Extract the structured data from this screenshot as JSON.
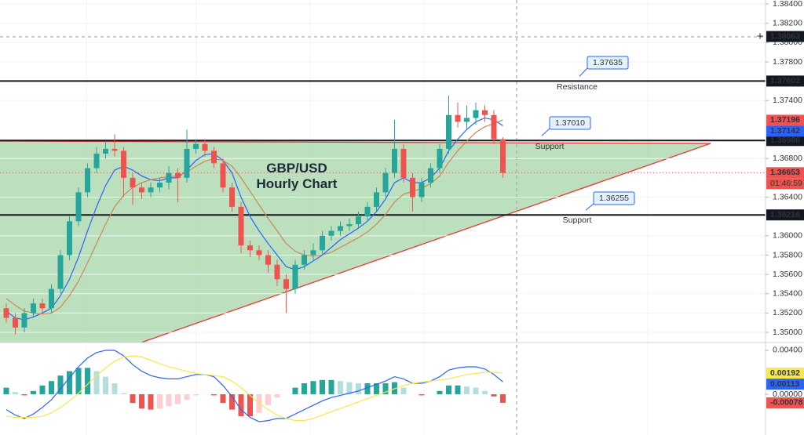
{
  "chart_data": [
    {
      "type": "candlestick",
      "title": "GBP/USD Hourly Chart",
      "open": [
        1.3525,
        1.3515,
        1.3505,
        1.352,
        1.353,
        1.3525,
        1.3545,
        1.358,
        1.3615,
        1.3645,
        1.367,
        1.3685,
        1.369,
        1.3688,
        1.366,
        1.365,
        1.3645,
        1.365,
        1.3655,
        1.3665,
        1.366,
        1.369,
        1.3695,
        1.3688,
        1.3675,
        1.365,
        1.363,
        1.359,
        1.3585,
        1.358,
        1.357,
        1.3555,
        1.3545,
        1.357,
        1.358,
        1.3585,
        1.36,
        1.3605,
        1.361,
        1.3612,
        1.362,
        1.363,
        1.3645,
        1.3665,
        1.369,
        1.366,
        1.364,
        1.3655,
        1.367,
        1.369,
        1.3725,
        1.3718,
        1.3722,
        1.373,
        1.3725,
        1.37
      ],
      "high": [
        1.353,
        1.352,
        1.3525,
        1.3535,
        1.3535,
        1.355,
        1.3585,
        1.362,
        1.365,
        1.3675,
        1.3692,
        1.3698,
        1.3705,
        1.3692,
        1.3665,
        1.3655,
        1.3655,
        1.366,
        1.3672,
        1.367,
        1.371,
        1.37,
        1.37,
        1.3692,
        1.368,
        1.3655,
        1.3635,
        1.3595,
        1.359,
        1.3585,
        1.3575,
        1.356,
        1.3575,
        1.3585,
        1.3592,
        1.3605,
        1.361,
        1.3615,
        1.3618,
        1.3625,
        1.3635,
        1.365,
        1.367,
        1.372,
        1.3695,
        1.3665,
        1.366,
        1.3675,
        1.3695,
        1.3745,
        1.3738,
        1.3735,
        1.3738,
        1.3735,
        1.373,
        1.3702
      ],
      "low": [
        1.351,
        1.3498,
        1.35,
        1.3515,
        1.352,
        1.352,
        1.354,
        1.3575,
        1.361,
        1.364,
        1.3665,
        1.368,
        1.3682,
        1.364,
        1.3632,
        1.3638,
        1.364,
        1.3645,
        1.3648,
        1.3635,
        1.3655,
        1.3685,
        1.3682,
        1.367,
        1.3645,
        1.3625,
        1.3582,
        1.3578,
        1.3575,
        1.3562,
        1.3548,
        1.352,
        1.354,
        1.3565,
        1.3575,
        1.358,
        1.3595,
        1.36,
        1.3605,
        1.3608,
        1.3615,
        1.3625,
        1.364,
        1.366,
        1.3655,
        1.3625,
        1.3635,
        1.365,
        1.3665,
        1.3685,
        1.3712,
        1.371,
        1.3715,
        1.3718,
        1.3695,
        1.366
      ],
      "close": [
        1.3515,
        1.3505,
        1.352,
        1.353,
        1.3525,
        1.3545,
        1.358,
        1.3615,
        1.3645,
        1.367,
        1.3685,
        1.369,
        1.3688,
        1.366,
        1.365,
        1.3645,
        1.365,
        1.3655,
        1.3665,
        1.366,
        1.369,
        1.3695,
        1.3688,
        1.3675,
        1.365,
        1.363,
        1.359,
        1.3585,
        1.358,
        1.357,
        1.3555,
        1.3545,
        1.357,
        1.358,
        1.3585,
        1.36,
        1.3605,
        1.361,
        1.3612,
        1.362,
        1.363,
        1.3645,
        1.3665,
        1.369,
        1.366,
        1.364,
        1.3655,
        1.367,
        1.369,
        1.3725,
        1.3718,
        1.3722,
        1.373,
        1.3725,
        1.37,
        1.3665
      ],
      "up_color": "#26a69a",
      "down_color": "#ef5350",
      "overlays": [
        {
          "color": "#2962ff",
          "values": [
            1.3522,
            1.3515,
            1.3513,
            1.3516,
            1.352,
            1.3525,
            1.3538,
            1.3555,
            1.3578,
            1.3605,
            1.363,
            1.3652,
            1.3668,
            1.3672,
            1.3668,
            1.3662,
            1.3658,
            1.3657,
            1.366,
            1.366,
            1.3668,
            1.3678,
            1.3684,
            1.3685,
            1.3678,
            1.3665,
            1.364,
            1.362,
            1.3605,
            1.3592,
            1.358,
            1.3568,
            1.3565,
            1.3568,
            1.3574,
            1.358,
            1.3588,
            1.3596,
            1.3602,
            1.3608,
            1.3615,
            1.3625,
            1.3638,
            1.3655,
            1.366,
            1.3655,
            1.3655,
            1.366,
            1.367,
            1.3688,
            1.37,
            1.371,
            1.3718,
            1.3722,
            1.372,
            1.3714
          ]
        },
        {
          "color": "#c8895a",
          "values": [
            1.3535,
            1.3528,
            1.3522,
            1.352,
            1.3519,
            1.352,
            1.3526,
            1.3538,
            1.3553,
            1.3572,
            1.3592,
            1.3612,
            1.363,
            1.3642,
            1.365,
            1.3655,
            1.3658,
            1.366,
            1.3661,
            1.3662,
            1.3666,
            1.3672,
            1.3677,
            1.368,
            1.3678,
            1.3672,
            1.366,
            1.3646,
            1.3632,
            1.3618,
            1.3605,
            1.3592,
            1.3584,
            1.358,
            1.3579,
            1.358,
            1.3583,
            1.3588,
            1.3593,
            1.3598,
            1.3604,
            1.3612,
            1.3622,
            1.3635,
            1.3643,
            1.3646,
            1.3649,
            1.3654,
            1.3662,
            1.3676,
            1.3688,
            1.3698,
            1.3707,
            1.3713,
            1.3716,
            1.372
          ]
        }
      ],
      "levels": [
        {
          "value": 1.37602,
          "note": "Resistance",
          "note_color": "#d32f2f",
          "callout": 1.37635
        },
        {
          "value": 1.36986,
          "note": "Support",
          "note_color": "#2e7d32",
          "callout": {
            "value": 1.3701,
            "label": "1.37010"
          }
        },
        {
          "value": 1.36216,
          "note": "Support",
          "note_color": "#2e7d32",
          "callout": 1.36255
        }
      ],
      "axis_labels": [
        {
          "value": 1.38063,
          "bg": "#131722"
        },
        {
          "value": 1.37196,
          "bg": "#ef5350"
        },
        {
          "value": 1.37142,
          "bg": "#2962ff"
        },
        {
          "value": 1.36653,
          "bg": "#ef5350",
          "countdown": "01:46:59"
        }
      ],
      "ylim": [
        1.34895,
        1.38441
      ],
      "yticks": [
        {
          "value": 1.384,
          "label": "1.38400"
        },
        {
          "value": 1.382,
          "label": "1.38200"
        },
        {
          "value": 1.38,
          "label": "1.38000"
        },
        {
          "value": 1.378,
          "label": "1.37800"
        },
        {
          "value": 1.374,
          "label": "1.37400"
        },
        {
          "value": 1.368,
          "label": "1.36800"
        },
        {
          "value": 1.364,
          "label": "1.36400"
        },
        {
          "value": 1.36,
          "label": "1.36000"
        },
        {
          "value": 1.358,
          "label": "1.35800"
        },
        {
          "value": 1.356,
          "label": "1.35600"
        },
        {
          "value": 1.354,
          "label": "1.35400"
        },
        {
          "value": 1.352,
          "label": "1.35200"
        },
        {
          "value": 1.35,
          "label": "1.35000"
        }
      ],
      "grid": true
    },
    {
      "type": "macd",
      "histogram": [
        0.0006,
        0.0002,
        -0.0001,
        0.0003,
        0.0008,
        0.0012,
        0.0017,
        0.0021,
        0.0024,
        0.0024,
        0.0021,
        0.0016,
        0.001,
        0.0001,
        -0.0008,
        -0.0013,
        -0.0014,
        -0.0013,
        -0.0011,
        -0.0009,
        -0.0005,
        -0.0001,
        0.0,
        -0.0001,
        -0.0008,
        -0.0014,
        -0.002,
        -0.002,
        -0.0017,
        -0.001,
        -0.0003,
        0.0,
        0.0006,
        0.001,
        0.0012,
        0.0013,
        0.0013,
        0.0012,
        0.0011,
        0.001,
        0.001,
        0.001,
        0.001,
        0.0011,
        0.0006,
        0.0,
        -0.0001,
        0.0,
        0.0003,
        0.0008,
        0.0008,
        0.0007,
        0.0006,
        0.0003,
        -0.0002,
        -0.00078
      ],
      "hist_colors": [
        "#26a69a",
        "#b2dfdb",
        "#ffcdd2",
        "#ef5350"
      ],
      "series": [
        {
          "color": "#2962ff",
          "values": [
            -0.0014,
            -0.0019,
            -0.0022,
            -0.0018,
            -0.0012,
            -0.0005,
            0.0005,
            0.0015,
            0.0025,
            0.0033,
            0.0038,
            0.004,
            0.004,
            0.0035,
            0.0027,
            0.0021,
            0.0017,
            0.0015,
            0.0014,
            0.0014,
            0.0016,
            0.0018,
            0.0018,
            0.0016,
            0.0008,
            -0.0002,
            -0.0014,
            -0.0021,
            -0.0025,
            -0.0024,
            -0.0022,
            -0.0022,
            -0.0018,
            -0.0014,
            -0.001,
            -0.0006,
            -0.0003,
            -0.0001,
            0.0001,
            0.0003,
            0.0006,
            0.0009,
            0.0012,
            0.0016,
            0.0014,
            0.001,
            0.001,
            0.0012,
            0.0016,
            0.0022,
            0.0024,
            0.0025,
            0.0025,
            0.0023,
            0.0018,
            0.00113
          ]
        },
        {
          "color": "#f5e94a",
          "values": [
            -0.002,
            -0.0021,
            -0.0021,
            -0.0021,
            -0.002,
            -0.0017,
            -0.0012,
            -0.0006,
            0.0001,
            0.0009,
            0.0017,
            0.0024,
            0.003,
            0.0034,
            0.0035,
            0.0034,
            0.0031,
            0.0028,
            0.0025,
            0.0023,
            0.0021,
            0.0019,
            0.0018,
            0.0017,
            0.0016,
            0.0012,
            0.0006,
            -0.0001,
            -0.0008,
            -0.0014,
            -0.0019,
            -0.0022,
            -0.0024,
            -0.0024,
            -0.0022,
            -0.0019,
            -0.0016,
            -0.0013,
            -0.001,
            -0.0007,
            -0.0004,
            -0.0001,
            0.0002,
            0.0005,
            0.0008,
            0.001,
            0.0011,
            0.0012,
            0.0013,
            0.0014,
            0.0016,
            0.0018,
            0.0019,
            0.002,
            0.002,
            0.00192
          ]
        }
      ],
      "axis_labels": [
        {
          "value": 0.00192,
          "bg": "#f5e94a",
          "fg": "#131722"
        },
        {
          "value": 0.00113,
          "bg": "#2962ff",
          "fg": "#ffffff"
        },
        {
          "value": -0.00078,
          "bg": "#ef5350",
          "fg": "#131722"
        }
      ],
      "ylim": [
        -0.00371,
        0.00464
      ],
      "yticks": [
        {
          "value": 0.004,
          "label": "0.00400"
        },
        {
          "value": 0,
          "label": "0.00000"
        }
      ]
    }
  ]
}
